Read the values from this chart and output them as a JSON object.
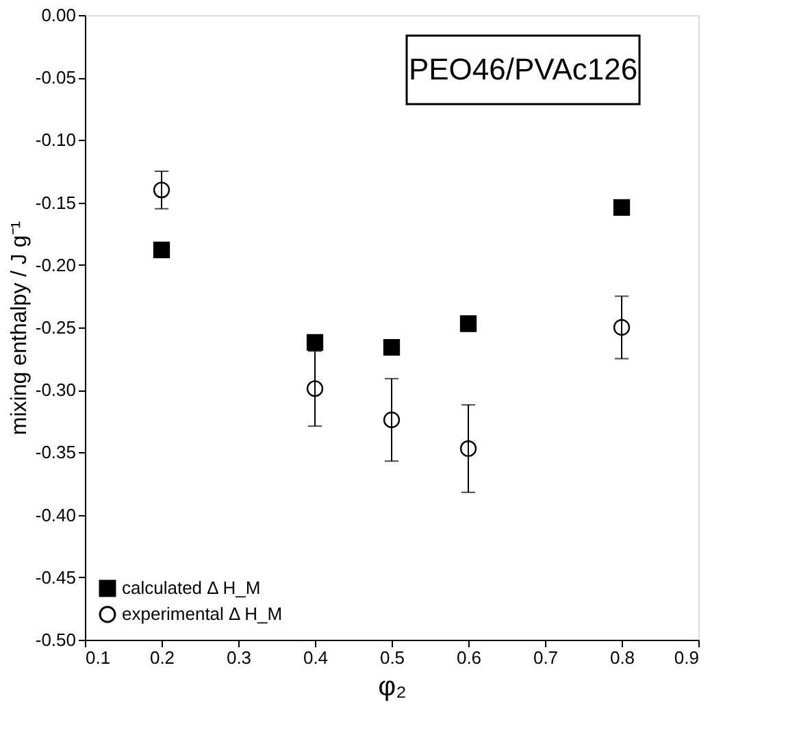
{
  "chart_data": {
    "type": "scatter",
    "xlabel": "φ₂",
    "ylabel": "mixing enthalpy / J g⁻¹",
    "annotations": [
      "PEO46/PVAc126"
    ],
    "x": [
      0.2,
      0.4,
      0.5,
      0.6,
      0.8
    ],
    "series": [
      {
        "name": "calculated Δ H_M",
        "color": "#000000",
        "marker": "square",
        "values": [
          -0.188,
          -0.262,
          -0.266,
          -0.247,
          -0.154
        ]
      },
      {
        "name": "experimental Δ H_M",
        "color": "#000000",
        "marker": "circle",
        "values": [
          -0.14,
          -0.299,
          -0.324,
          -0.347,
          -0.25
        ],
        "errors": [
          0.015,
          0.03,
          0.033,
          0.035,
          0.025
        ]
      }
    ],
    "xlim": [
      0.1,
      0.9
    ],
    "xticks": [
      0.1,
      0.2,
      0.3,
      0.4,
      0.5,
      0.6,
      0.7,
      0.8,
      0.9
    ],
    "ylim": [
      -0.5,
      0.0
    ],
    "yticks": [
      {
        "value": -0.5,
        "label": "-0.50"
      },
      {
        "value": -0.45,
        "label": "-0.45"
      },
      {
        "value": -0.4,
        "label": "-0.40"
      },
      {
        "value": -0.35,
        "label": "-0.35"
      },
      {
        "value": -0.3,
        "label": "-0.30"
      },
      {
        "value": -0.25,
        "label": "-0.25"
      },
      {
        "value": -0.2,
        "label": "-0.20"
      },
      {
        "value": -0.15,
        "label": "-0.15"
      },
      {
        "value": -0.1,
        "label": "-0.10"
      },
      {
        "value": -0.05,
        "label": "-0.05"
      },
      {
        "value": 0.0,
        "label": "0.00"
      }
    ],
    "grid": false,
    "legend": "bottom left"
  }
}
